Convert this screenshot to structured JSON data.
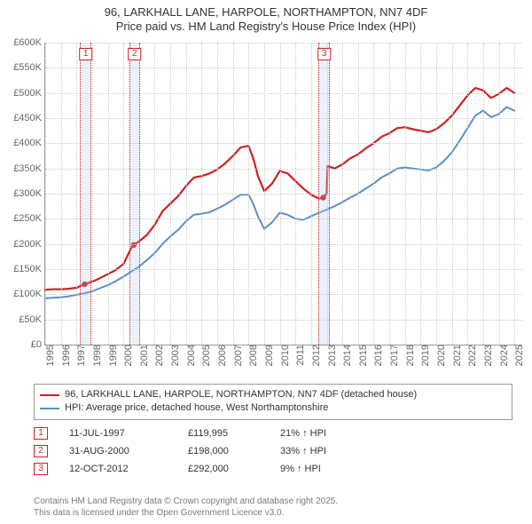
{
  "title": {
    "line1": "96, LARKHALL LANE, HARPOLE, NORTHAMPTON, NN7 4DF",
    "line2": "Price paid vs. HM Land Registry's House Price Index (HPI)"
  },
  "chart": {
    "type": "line",
    "background_color": "#ffffff",
    "grid_color": "#cccccc",
    "axis_color": "#999999",
    "y": {
      "min": 0,
      "max": 600000,
      "step": 50000,
      "labels": [
        "£0",
        "£50K",
        "£100K",
        "£150K",
        "£200K",
        "£250K",
        "£300K",
        "£350K",
        "£400K",
        "£450K",
        "£500K",
        "£550K",
        "£600K"
      ],
      "label_fontsize": 11,
      "label_color": "#666666"
    },
    "x": {
      "min": 1995,
      "max": 2025.5,
      "ticks": [
        1995,
        1996,
        1997,
        1998,
        1999,
        2000,
        2001,
        2002,
        2003,
        2004,
        2005,
        2006,
        2007,
        2008,
        2009,
        2010,
        2011,
        2012,
        2013,
        2014,
        2015,
        2016,
        2017,
        2018,
        2019,
        2020,
        2021,
        2022,
        2023,
        2024,
        2025
      ],
      "label_fontsize": 11,
      "label_color": "#666666",
      "label_rotation": -90
    },
    "marker_band": {
      "fill": "rgba(173,200,230,0.25)",
      "border": "#d02020",
      "badge_border": "#d02020",
      "badge_text_color": "#d02020",
      "badge_bg": "#ffffff",
      "width_years": 0.6
    },
    "series": [
      {
        "id": "price_paid",
        "label": "96, LARKHALL LANE, HARPOLE, NORTHAMPTON, NN7 4DF (detached house)",
        "color": "#d02020",
        "line_width": 2.2,
        "points": [
          [
            1995.0,
            109000
          ],
          [
            1995.5,
            110000
          ],
          [
            1996.0,
            110000
          ],
          [
            1996.5,
            111000
          ],
          [
            1997.0,
            113000
          ],
          [
            1997.5,
            119995
          ],
          [
            1998.0,
            125000
          ],
          [
            1998.5,
            132000
          ],
          [
            1999.0,
            140000
          ],
          [
            1999.5,
            148000
          ],
          [
            2000.0,
            160000
          ],
          [
            2000.5,
            192000
          ],
          [
            2000.66,
            198000
          ],
          [
            2001.0,
            205000
          ],
          [
            2001.5,
            218000
          ],
          [
            2002.0,
            238000
          ],
          [
            2002.5,
            265000
          ],
          [
            2003.0,
            280000
          ],
          [
            2003.5,
            295000
          ],
          [
            2004.0,
            315000
          ],
          [
            2004.5,
            332000
          ],
          [
            2005.0,
            335000
          ],
          [
            2005.5,
            340000
          ],
          [
            2006.0,
            348000
          ],
          [
            2006.5,
            360000
          ],
          [
            2007.0,
            375000
          ],
          [
            2007.5,
            392000
          ],
          [
            2008.0,
            395000
          ],
          [
            2008.3,
            370000
          ],
          [
            2008.6,
            335000
          ],
          [
            2009.0,
            305000
          ],
          [
            2009.5,
            320000
          ],
          [
            2010.0,
            345000
          ],
          [
            2010.5,
            340000
          ],
          [
            2011.0,
            325000
          ],
          [
            2011.5,
            310000
          ],
          [
            2012.0,
            298000
          ],
          [
            2012.5,
            290000
          ],
          [
            2012.78,
            292000
          ],
          [
            2013.0,
            300000
          ],
          [
            2013.05,
            355000
          ],
          [
            2013.5,
            350000
          ],
          [
            2014.0,
            358000
          ],
          [
            2014.5,
            370000
          ],
          [
            2015.0,
            378000
          ],
          [
            2015.5,
            390000
          ],
          [
            2016.0,
            400000
          ],
          [
            2016.5,
            413000
          ],
          [
            2017.0,
            420000
          ],
          [
            2017.5,
            430000
          ],
          [
            2018.0,
            432000
          ],
          [
            2018.5,
            428000
          ],
          [
            2019.0,
            425000
          ],
          [
            2019.5,
            422000
          ],
          [
            2020.0,
            428000
          ],
          [
            2020.5,
            440000
          ],
          [
            2021.0,
            455000
          ],
          [
            2021.5,
            475000
          ],
          [
            2022.0,
            495000
          ],
          [
            2022.5,
            510000
          ],
          [
            2023.0,
            505000
          ],
          [
            2023.5,
            490000
          ],
          [
            2024.0,
            498000
          ],
          [
            2024.5,
            510000
          ],
          [
            2025.0,
            500000
          ]
        ]
      },
      {
        "id": "hpi",
        "label": "HPI: Average price, detached house, West Northamptonshire",
        "color": "#5a8fc8",
        "line_width": 2.0,
        "points": [
          [
            1995.0,
            92000
          ],
          [
            1995.5,
            93000
          ],
          [
            1996.0,
            94000
          ],
          [
            1996.5,
            96000
          ],
          [
            1997.0,
            99000
          ],
          [
            1997.5,
            102000
          ],
          [
            1998.0,
            106000
          ],
          [
            1998.5,
            112000
          ],
          [
            1999.0,
            118000
          ],
          [
            1999.5,
            126000
          ],
          [
            2000.0,
            135000
          ],
          [
            2000.5,
            145000
          ],
          [
            2001.0,
            155000
          ],
          [
            2001.5,
            168000
          ],
          [
            2002.0,
            182000
          ],
          [
            2002.5,
            200000
          ],
          [
            2003.0,
            215000
          ],
          [
            2003.5,
            228000
          ],
          [
            2004.0,
            245000
          ],
          [
            2004.5,
            258000
          ],
          [
            2005.0,
            260000
          ],
          [
            2005.5,
            263000
          ],
          [
            2006.0,
            270000
          ],
          [
            2006.5,
            278000
          ],
          [
            2007.0,
            288000
          ],
          [
            2007.5,
            298000
          ],
          [
            2008.0,
            298000
          ],
          [
            2008.3,
            280000
          ],
          [
            2008.6,
            255000
          ],
          [
            2009.0,
            230000
          ],
          [
            2009.5,
            243000
          ],
          [
            2010.0,
            262000
          ],
          [
            2010.5,
            258000
          ],
          [
            2011.0,
            250000
          ],
          [
            2011.5,
            248000
          ],
          [
            2012.0,
            255000
          ],
          [
            2012.5,
            262000
          ],
          [
            2013.0,
            268000
          ],
          [
            2013.5,
            275000
          ],
          [
            2014.0,
            283000
          ],
          [
            2014.5,
            292000
          ],
          [
            2015.0,
            300000
          ],
          [
            2015.5,
            310000
          ],
          [
            2016.0,
            320000
          ],
          [
            2016.5,
            332000
          ],
          [
            2017.0,
            340000
          ],
          [
            2017.5,
            350000
          ],
          [
            2018.0,
            352000
          ],
          [
            2018.5,
            350000
          ],
          [
            2019.0,
            348000
          ],
          [
            2019.5,
            346000
          ],
          [
            2020.0,
            352000
          ],
          [
            2020.5,
            365000
          ],
          [
            2021.0,
            382000
          ],
          [
            2021.5,
            405000
          ],
          [
            2022.0,
            430000
          ],
          [
            2022.5,
            455000
          ],
          [
            2023.0,
            465000
          ],
          [
            2023.5,
            452000
          ],
          [
            2024.0,
            458000
          ],
          [
            2024.5,
            472000
          ],
          [
            2025.0,
            465000
          ]
        ]
      }
    ],
    "sale_markers": [
      {
        "badge": "1",
        "year": 1997.53,
        "price": 119995
      },
      {
        "badge": "2",
        "year": 2000.66,
        "price": 198000
      },
      {
        "badge": "3",
        "year": 2012.78,
        "price": 292000
      }
    ]
  },
  "legend": {
    "border_color": "#999999",
    "fontsize": 11
  },
  "sales_table": {
    "hpi_suffix_label": "HPI",
    "arrow_glyph": "↑",
    "rows": [
      {
        "badge": "1",
        "date": "11-JUL-1997",
        "price": "£119,995",
        "pct": "21%"
      },
      {
        "badge": "2",
        "date": "31-AUG-2000",
        "price": "£198,000",
        "pct": "33%"
      },
      {
        "badge": "3",
        "date": "12-OCT-2012",
        "price": "£292,000",
        "pct": "9%"
      }
    ]
  },
  "attribution": {
    "line1": "Contains HM Land Registry data © Crown copyright and database right 2025.",
    "line2": "This data is licensed under the Open Government Licence v3.0."
  }
}
